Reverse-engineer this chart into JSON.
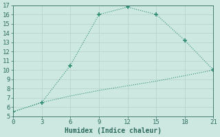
{
  "line1_x": [
    0,
    3,
    6,
    9,
    12,
    15,
    18,
    21
  ],
  "line1_y": [
    5.5,
    6.5,
    10.5,
    16.0,
    16.8,
    16.0,
    13.2,
    10.0
  ],
  "line2_x": [
    0,
    3,
    6,
    9,
    12,
    15,
    18,
    21
  ],
  "line2_y": [
    5.5,
    6.5,
    7.2,
    7.8,
    8.3,
    8.8,
    9.4,
    10.0
  ],
  "line_color": "#2e8b72",
  "bg_color": "#cce8e0",
  "grid_color": "#b8d4cc",
  "xlabel": "Humidex (Indice chaleur)",
  "xlim": [
    0,
    21
  ],
  "ylim": [
    5,
    17
  ],
  "xticks": [
    0,
    3,
    6,
    9,
    12,
    15,
    18,
    21
  ],
  "yticks": [
    5,
    6,
    7,
    8,
    9,
    10,
    11,
    12,
    13,
    14,
    15,
    16,
    17
  ],
  "font_color": "#2e6b5e",
  "tick_fontsize": 6.5,
  "xlabel_fontsize": 7.0
}
